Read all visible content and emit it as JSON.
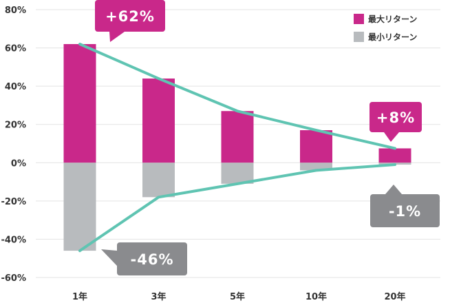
{
  "chart_data": {
    "type": "bar",
    "categories": [
      "1年",
      "3年",
      "5年",
      "10年",
      "20年"
    ],
    "series": [
      {
        "name": "最大リターン",
        "values": [
          62,
          44,
          27,
          17,
          7.5
        ],
        "color": "#c9288a"
      },
      {
        "name": "最小リターン",
        "values": [
          -46,
          -18,
          -11,
          -4,
          -1
        ],
        "color": "#b8bbbe"
      }
    ],
    "trend_color": "#5fc4b2",
    "y_ticks": [
      "80%",
      "60%",
      "40%",
      "20%",
      "0%",
      "-20%",
      "-40%",
      "-60%"
    ],
    "ylim": [
      -60,
      80
    ],
    "grid": true,
    "legend_position": "top-right",
    "annotations": [
      {
        "text": "+62%",
        "series": 0,
        "category": "1年",
        "color": "#c9288a"
      },
      {
        "text": "+8%",
        "series": 0,
        "category": "20年",
        "color": "#c9288a"
      },
      {
        "text": "-46%",
        "series": 1,
        "category": "1年",
        "color": "#8a8b8e"
      },
      {
        "text": "-1%",
        "series": 1,
        "category": "20年",
        "color": "#8a8b8e"
      }
    ]
  }
}
